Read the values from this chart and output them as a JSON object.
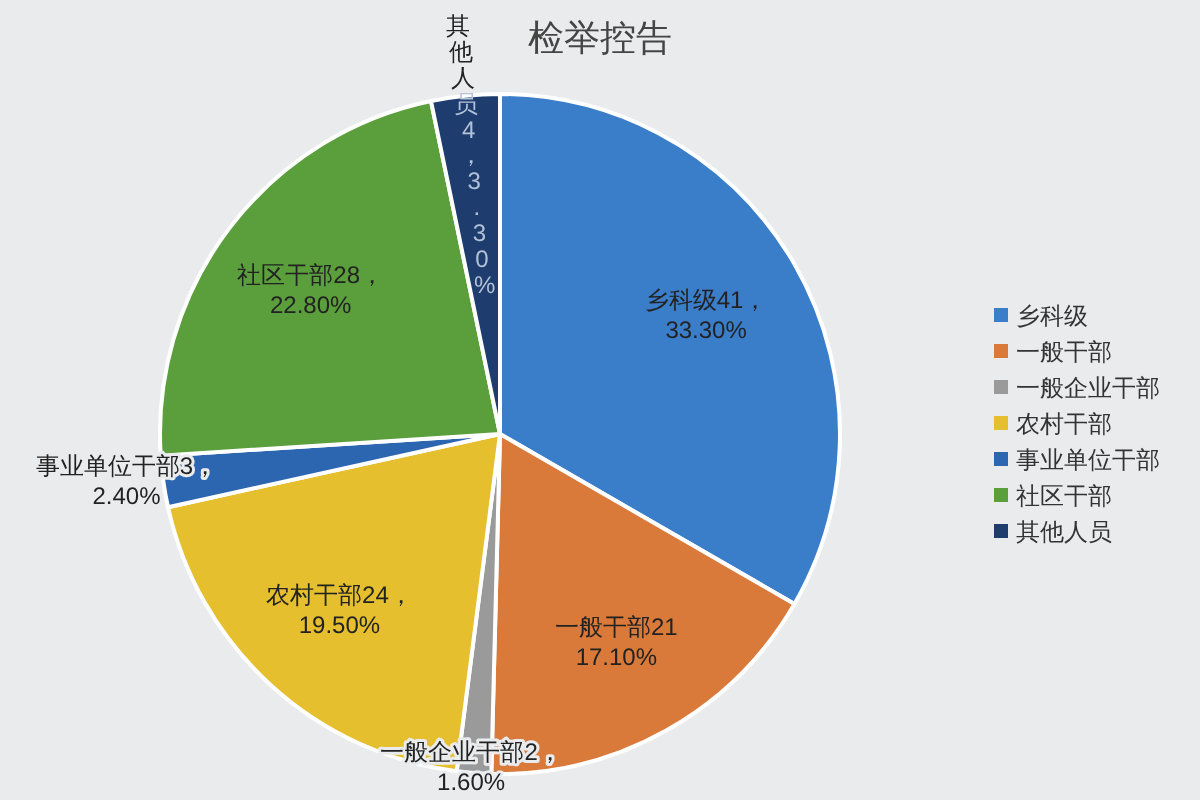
{
  "chart_data": {
    "type": "pie",
    "title": "检举控告",
    "categories": [
      "乡科级",
      "一般干部",
      "一般企业干部",
      "农村干部",
      "事业单位干部",
      "社区干部",
      "其他人员"
    ],
    "values": [
      41,
      21,
      2,
      24,
      3,
      28,
      4
    ],
    "colors": [
      "#3a7dc9",
      "#d97a3a",
      "#9a9a9a",
      "#e6bf2e",
      "#2d66b0",
      "#5b9e3c",
      "#1e3d6e"
    ],
    "value_labels": [
      "乡科级41，\n33.30%",
      "一般干部21\n17.10%",
      "一般企业干部2，\n1.60%",
      "农村干部24，\n19.50%",
      "事业单位干部3，\n2.40%",
      "社区干部28，\n22.80%",
      "其他人员4，\n3.30%"
    ],
    "legend": "right"
  }
}
